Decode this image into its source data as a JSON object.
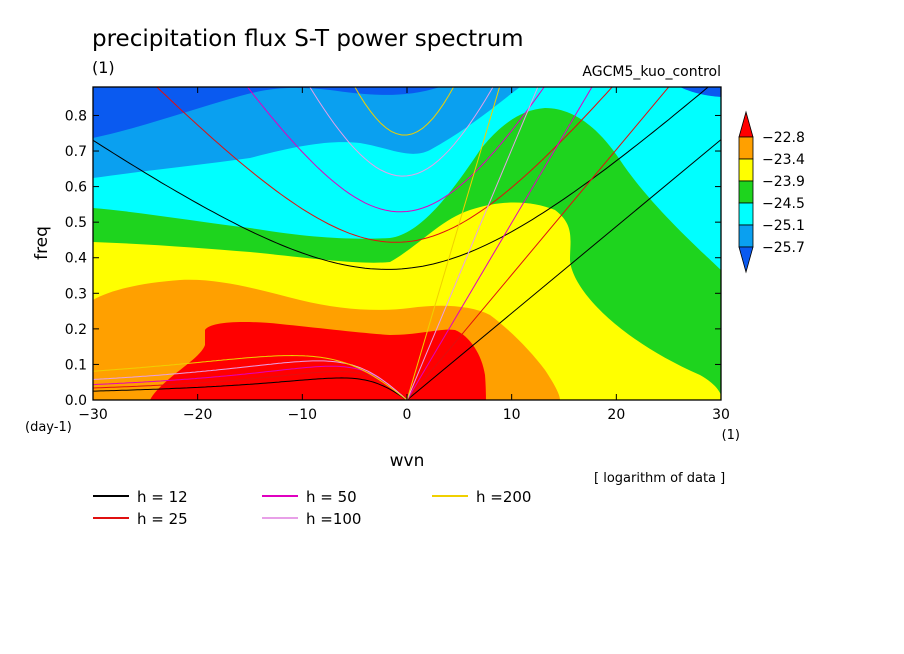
{
  "chart_data": {
    "type": "heatmap",
    "title": "precipitation flux S-T power spectrum",
    "subtitle": "(1)",
    "experiment": "AGCM5_kuo_control",
    "xlabel": "wvn",
    "ylabel": "freq",
    "x_unit": "(1)",
    "y_unit": "(day-1)",
    "xlim": [
      -30,
      30
    ],
    "ylim": [
      0,
      0.88
    ],
    "x_ticks": [
      -30,
      -20,
      -10,
      0,
      10,
      20,
      30
    ],
    "y_ticks": [
      0.0,
      0.1,
      0.2,
      0.3,
      0.4,
      0.5,
      0.6,
      0.7,
      0.8
    ],
    "note": "[ logarithm of data ]",
    "colorbar": {
      "levels": [
        "-22.8",
        "-23.4",
        "-23.9",
        "-24.5",
        "-25.1",
        "-25.7"
      ],
      "colors": [
        "#0a5af0",
        "#0aa0f0",
        "#00ffff",
        "#1ed41e",
        "#ffff00",
        "#ffa000",
        "#ff0000"
      ]
    },
    "fill_colors": {
      "darkblue": "#0a5af0",
      "blue": "#0aa0f0",
      "cyan": "#00ffff",
      "green": "#1ed41e",
      "yellow": "#ffff00",
      "orange": "#ffa000",
      "red": "#ff0000"
    },
    "dispersion_curves": [
      {
        "name": "h = 12",
        "h": 12,
        "color": "#000000"
      },
      {
        "name": "h = 25",
        "h": 25,
        "color": "#e01010"
      },
      {
        "name": "h = 50",
        "h": 50,
        "color": "#e000c0"
      },
      {
        "name": "h =100",
        "h": 100,
        "color": "#e8a0e8"
      },
      {
        "name": "h =200",
        "h": 200,
        "color": "#f0d000"
      }
    ],
    "kelvin_wave_slope_per_h": {
      "12": 0.0244,
      "25": 0.0352,
      "50": 0.0498,
      "100": 0.0704,
      "200": 0.0995
    },
    "ig_min_freq": {
      "12": 0.37,
      "25": 0.445,
      "50": 0.53,
      "100": 0.63,
      "200": 0.745
    },
    "rossby_peak_freq": {
      "12": 0.062,
      "25": 0.08,
      "50": 0.095,
      "100": 0.11,
      "200": 0.125
    }
  }
}
